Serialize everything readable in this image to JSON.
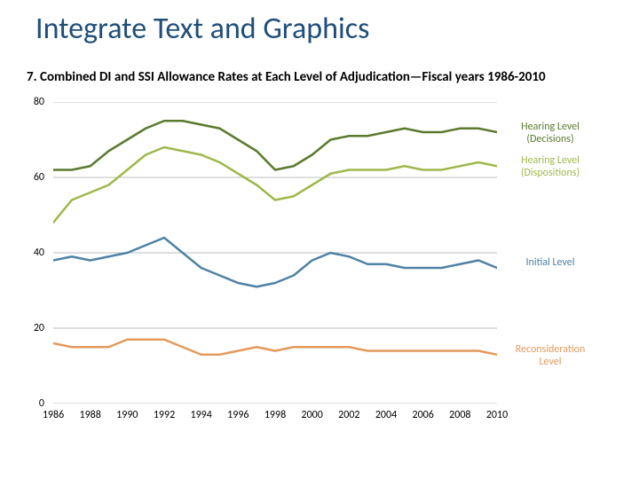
{
  "title": {
    "text": "Integrate Text and Graphics",
    "color": "#1f4e79"
  },
  "subtitle": "7. Combined DI and SSI Allowance Rates at Each Level of Adjudication—Fiscal years 1986-2010",
  "chart": {
    "type": "line",
    "background_color": "#ffffff",
    "title_fontsize": 34,
    "subtitle_fontsize": 15,
    "label_fontsize": 12,
    "x": {
      "min": 1986,
      "max": 2010,
      "tick_step": 2,
      "ticks": [
        1986,
        1988,
        1990,
        1992,
        1994,
        1996,
        1998,
        2000,
        2002,
        2004,
        2006,
        2008,
        2010
      ],
      "gridline_color": "#bfbfbf",
      "gridline_width": 1
    },
    "y": {
      "min": 0,
      "max": 80,
      "tick_step": 20,
      "ticks": [
        0,
        20,
        40,
        60,
        80
      ],
      "gridline_color": "#bfbfbf",
      "gridline_width": 1
    },
    "line_width": 2.5,
    "series": [
      {
        "key": "hearing_decisions",
        "label": "Hearing Level\n(Decisions)",
        "color": "#5a7a2e",
        "label_color": "#5a7a2e",
        "points": [
          [
            1986,
            62
          ],
          [
            1987,
            62
          ],
          [
            1988,
            63
          ],
          [
            1989,
            67
          ],
          [
            1990,
            70
          ],
          [
            1991,
            73
          ],
          [
            1992,
            75
          ],
          [
            1993,
            75
          ],
          [
            1994,
            74
          ],
          [
            1995,
            73
          ],
          [
            1996,
            70
          ],
          [
            1997,
            67
          ],
          [
            1998,
            62
          ],
          [
            1999,
            63
          ],
          [
            2000,
            66
          ],
          [
            2001,
            70
          ],
          [
            2002,
            71
          ],
          [
            2003,
            71
          ],
          [
            2004,
            72
          ],
          [
            2005,
            73
          ],
          [
            2006,
            72
          ],
          [
            2007,
            72
          ],
          [
            2008,
            73
          ],
          [
            2009,
            73
          ],
          [
            2010,
            72
          ]
        ]
      },
      {
        "key": "hearing_dispositions",
        "label": "Hearing Level\n(Dispositions)",
        "color": "#9fb84d",
        "label_color": "#9fb84d",
        "points": [
          [
            1986,
            48
          ],
          [
            1987,
            54
          ],
          [
            1988,
            56
          ],
          [
            1989,
            58
          ],
          [
            1990,
            62
          ],
          [
            1991,
            66
          ],
          [
            1992,
            68
          ],
          [
            1993,
            67
          ],
          [
            1994,
            66
          ],
          [
            1995,
            64
          ],
          [
            1996,
            61
          ],
          [
            1997,
            58
          ],
          [
            1998,
            54
          ],
          [
            1999,
            55
          ],
          [
            2000,
            58
          ],
          [
            2001,
            61
          ],
          [
            2002,
            62
          ],
          [
            2003,
            62
          ],
          [
            2004,
            62
          ],
          [
            2005,
            63
          ],
          [
            2006,
            62
          ],
          [
            2007,
            62
          ],
          [
            2008,
            63
          ],
          [
            2009,
            64
          ],
          [
            2010,
            63
          ]
        ]
      },
      {
        "key": "initial",
        "label": "Initial Level",
        "color": "#4e82a4",
        "label_color": "#4e82a4",
        "points": [
          [
            1986,
            38
          ],
          [
            1987,
            39
          ],
          [
            1988,
            38
          ],
          [
            1989,
            39
          ],
          [
            1990,
            40
          ],
          [
            1991,
            42
          ],
          [
            1992,
            44
          ],
          [
            1993,
            40
          ],
          [
            1994,
            36
          ],
          [
            1995,
            34
          ],
          [
            1996,
            32
          ],
          [
            1997,
            31
          ],
          [
            1998,
            32
          ],
          [
            1999,
            34
          ],
          [
            2000,
            38
          ],
          [
            2001,
            40
          ],
          [
            2002,
            39
          ],
          [
            2003,
            37
          ],
          [
            2004,
            37
          ],
          [
            2005,
            36
          ],
          [
            2006,
            36
          ],
          [
            2007,
            36
          ],
          [
            2008,
            37
          ],
          [
            2009,
            38
          ],
          [
            2010,
            36
          ]
        ]
      },
      {
        "key": "reconsideration",
        "label": "Reconsideration\nLevel",
        "color": "#e39a5b",
        "label_color": "#e39a5b",
        "points": [
          [
            1986,
            16
          ],
          [
            1987,
            15
          ],
          [
            1988,
            15
          ],
          [
            1989,
            15
          ],
          [
            1990,
            17
          ],
          [
            1991,
            17
          ],
          [
            1992,
            17
          ],
          [
            1993,
            15
          ],
          [
            1994,
            13
          ],
          [
            1995,
            13
          ],
          [
            1996,
            14
          ],
          [
            1997,
            15
          ],
          [
            1998,
            14
          ],
          [
            1999,
            15
          ],
          [
            2000,
            15
          ],
          [
            2001,
            15
          ],
          [
            2002,
            15
          ],
          [
            2003,
            14
          ],
          [
            2004,
            14
          ],
          [
            2005,
            14
          ],
          [
            2006,
            14
          ],
          [
            2007,
            14
          ],
          [
            2008,
            14
          ],
          [
            2009,
            14
          ],
          [
            2010,
            13
          ]
        ]
      }
    ]
  }
}
